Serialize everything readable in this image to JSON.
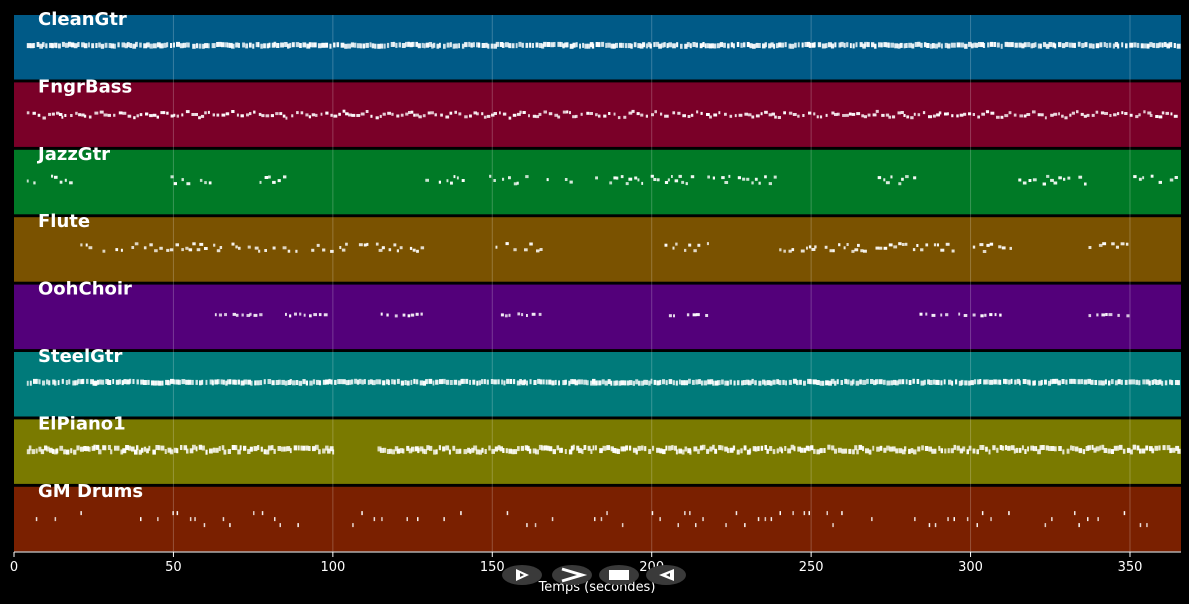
{
  "timeline": {
    "xlabel": "Temps (secondes)",
    "xlim": [
      0,
      366
    ],
    "ticks": [
      0,
      50,
      100,
      150,
      200,
      250,
      300,
      350
    ]
  },
  "tracks": [
    {
      "name": "CleanGtr",
      "color": "#005a87",
      "regions": [
        [
          4,
          365
        ]
      ],
      "density": 1.0,
      "lanes": 1,
      "pattern": "dense"
    },
    {
      "name": "FngrBass",
      "color": "#7a0028",
      "regions": [
        [
          4,
          365
        ]
      ],
      "density": 1.0,
      "lanes": 2,
      "pattern": "wave"
    },
    {
      "name": "JazzGtr",
      "color": "#007a26",
      "regions": [
        [
          4,
          18
        ],
        [
          48,
          62
        ],
        [
          77,
          85
        ],
        [
          129,
          143
        ],
        [
          149,
          166
        ],
        [
          166,
          225
        ],
        [
          227,
          239
        ],
        [
          270,
          282
        ],
        [
          314,
          336
        ],
        [
          351,
          365
        ]
      ],
      "density": 0.7,
      "lanes": 3,
      "pattern": "sparse"
    },
    {
      "name": "Flute",
      "color": "#7a5200",
      "regions": [
        [
          18,
          128
        ],
        [
          151,
          166
        ],
        [
          204,
          218
        ],
        [
          240,
          313
        ],
        [
          337,
          350
        ]
      ],
      "density": 0.7,
      "lanes": 3,
      "pattern": "sparse"
    },
    {
      "name": "OohChoir",
      "color": "#53007a",
      "regions": [
        [
          63,
          77
        ],
        [
          85,
          99
        ],
        [
          115,
          128
        ],
        [
          151,
          166
        ],
        [
          204,
          218
        ],
        [
          284,
          313
        ],
        [
          337,
          351
        ]
      ],
      "density": 0.8,
      "lanes": 1,
      "pattern": "sparse"
    },
    {
      "name": "SteelGtr",
      "color": "#007a7a",
      "regions": [
        [
          4,
          365
        ]
      ],
      "density": 1.0,
      "lanes": 1,
      "pattern": "dense"
    },
    {
      "name": "ElPiano1",
      "color": "#7a7a00",
      "regions": [
        [
          4,
          100
        ],
        [
          114,
          365
        ]
      ],
      "density": 1.0,
      "lanes": 2,
      "pattern": "dense"
    },
    {
      "name": "GM Drums",
      "color": "#7a2000",
      "regions": [
        [
          4,
          365
        ]
      ],
      "density": 0.45,
      "lanes": 3,
      "pattern": "drums"
    }
  ],
  "controls": [
    {
      "name": "play-button",
      "glyph": "play-outline-icon"
    },
    {
      "name": "forward-button",
      "glyph": "chevron-right-icon"
    },
    {
      "name": "stop-button",
      "glyph": "stop-icon"
    },
    {
      "name": "rewind-button",
      "glyph": "rewind-outline-icon"
    }
  ]
}
